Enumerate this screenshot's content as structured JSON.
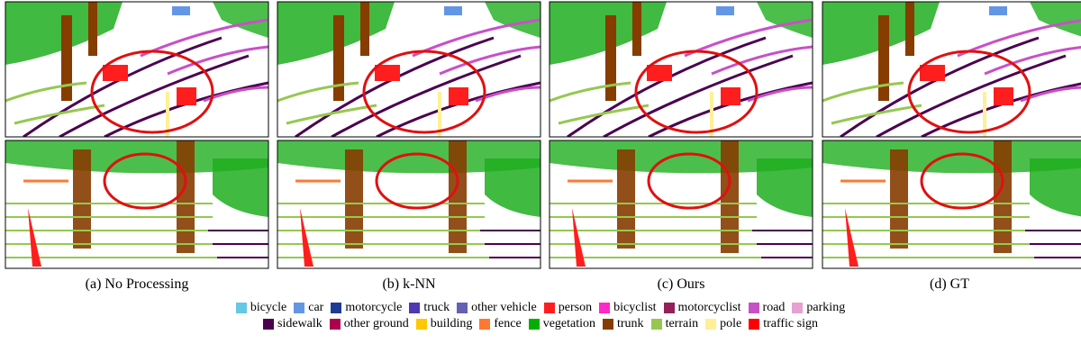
{
  "captions": [
    "(a) No Processing",
    "(b) k-NN",
    "(c) Ours",
    "(d) GT"
  ],
  "legend": [
    {
      "label": "bicycle",
      "color": "#64c8e6"
    },
    {
      "label": "car",
      "color": "#6496e6"
    },
    {
      "label": "motorcycle",
      "color": "#1e3c96"
    },
    {
      "label": "truck",
      "color": "#5037b4"
    },
    {
      "label": "other vehicle",
      "color": "#6460b4"
    },
    {
      "label": "person",
      "color": "#ff1e1e"
    },
    {
      "label": "bicyclist",
      "color": "#ff28c8"
    },
    {
      "label": "motorcyclist",
      "color": "#961e5a"
    },
    {
      "label": "road",
      "color": "#c850c8"
    },
    {
      "label": "parking",
      "color": "#e6a0d2"
    },
    {
      "label": "sidewalk",
      "color": "#4b0050"
    },
    {
      "label": "other ground",
      "color": "#af0050"
    },
    {
      "label": "building",
      "color": "#ffc800"
    },
    {
      "label": "fence",
      "color": "#ff7832"
    },
    {
      "label": "vegetation",
      "color": "#00af00"
    },
    {
      "label": "trunk",
      "color": "#873c00"
    },
    {
      "label": "terrain",
      "color": "#96c850"
    },
    {
      "label": "pole",
      "color": "#fff096"
    },
    {
      "label": "traffic sign",
      "color": "#ff0000"
    }
  ]
}
